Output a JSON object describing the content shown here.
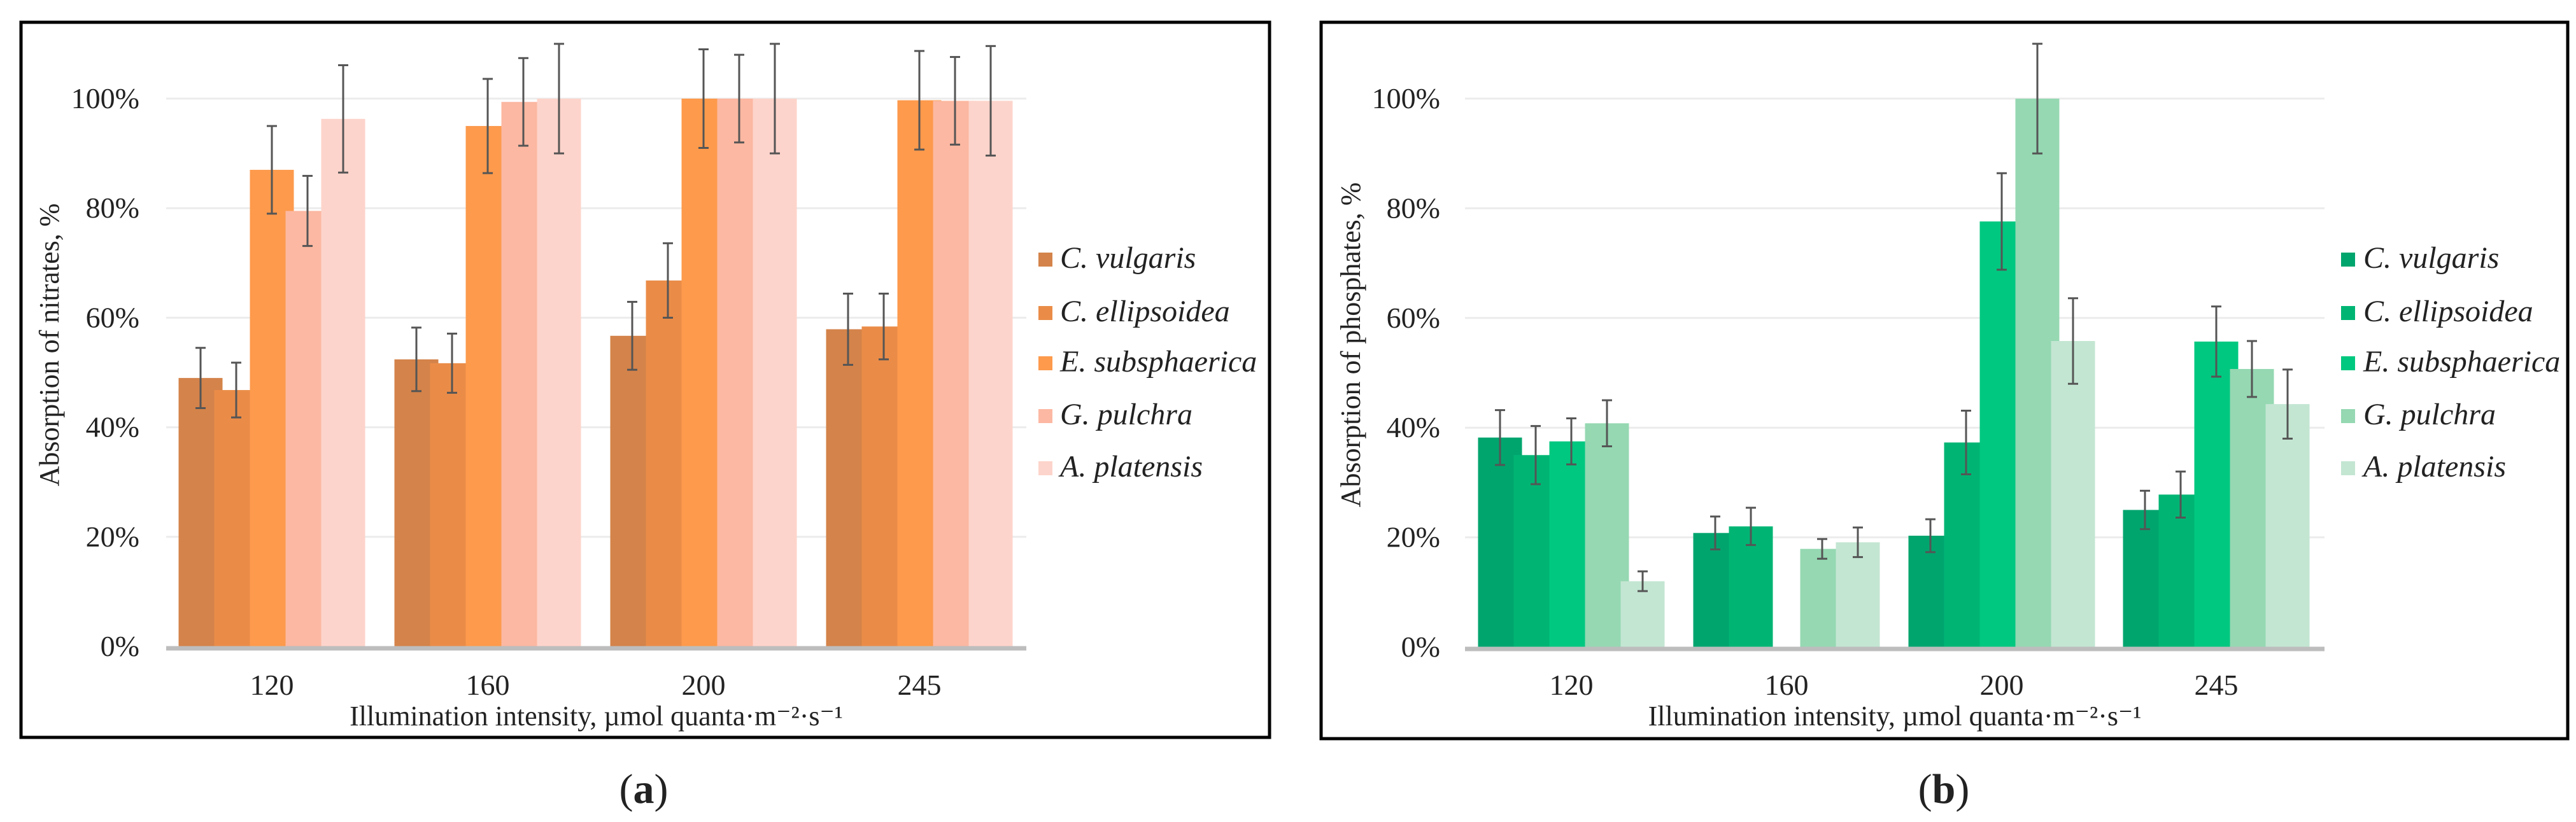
{
  "chart_data": [
    {
      "type": "bar",
      "caption_open": "(",
      "caption_letter": "a",
      "caption_close": ")",
      "xlabel": "Illumination intensity, µmol quanta·m⁻²·s⁻¹",
      "ylabel": "Absorption of nitrates, %",
      "categories": [
        "120",
        "160",
        "200",
        "245"
      ],
      "yticks": [
        "0%",
        "20%",
        "40%",
        "60%",
        "80%",
        "100%"
      ],
      "ylim": [
        0,
        110
      ],
      "grid": true,
      "legend_position": "right",
      "series": [
        {
          "name": "C. vulgaris",
          "color": "#d4834a",
          "values": [
            49.0,
            52.4,
            56.7,
            57.9
          ],
          "errors": [
            5.5,
            5.8,
            6.2,
            6.5
          ]
        },
        {
          "name": "C. ellipsoidea",
          "color": "#ea8c48",
          "values": [
            46.8,
            51.7,
            66.8,
            58.4
          ],
          "errors": [
            5.0,
            5.4,
            6.8,
            6.0
          ]
        },
        {
          "name": "E. subsphaerica",
          "color": "#fd9a4c",
          "values": [
            87.0,
            95.0,
            100.0,
            99.7
          ],
          "errors": [
            8.0,
            8.6,
            9.0,
            9.0
          ]
        },
        {
          "name": "G. pulchra",
          "color": "#fcb8a2",
          "values": [
            79.5,
            99.4,
            100.0,
            99.6
          ],
          "errors": [
            6.4,
            8.0,
            8.0,
            8.0
          ]
        },
        {
          "name": "A. platensis",
          "color": "#fdd4cb",
          "values": [
            96.3,
            100.0,
            100.0,
            99.6
          ],
          "errors": [
            9.8,
            10.0,
            10.0,
            10.0
          ]
        }
      ]
    },
    {
      "type": "bar",
      "caption_open": "(",
      "caption_letter": "b",
      "caption_close": ")",
      "xlabel": "Illumination intensity, µmol quanta·m⁻²·s⁻¹",
      "ylabel": "Absorption of phosphates, %",
      "categories": [
        "120",
        "160",
        "200",
        "245"
      ],
      "yticks": [
        "0%",
        "20%",
        "40%",
        "60%",
        "80%",
        "100%"
      ],
      "ylim": [
        0,
        110
      ],
      "grid": true,
      "legend_position": "right",
      "series": [
        {
          "name": "C. vulgaris",
          "color": "#00a56e",
          "values": [
            38.2,
            20.8,
            20.3,
            25.0
          ],
          "errors": [
            5.0,
            3.0,
            3.0,
            3.5
          ]
        },
        {
          "name": "C. ellipsoidea",
          "color": "#00b574",
          "values": [
            35.0,
            22.0,
            37.3,
            27.8
          ],
          "errors": [
            5.3,
            3.4,
            5.8,
            4.2
          ]
        },
        {
          "name": "E. subsphaerica",
          "color": "#00c880",
          "values": [
            37.5,
            0,
            77.6,
            55.7
          ],
          "errors": [
            4.2,
            0,
            8.8,
            6.4
          ]
        },
        {
          "name": "G. pulchra",
          "color": "#95d8b2",
          "values": [
            40.8,
            17.9,
            100.0,
            50.7
          ],
          "errors": [
            4.2,
            1.8,
            10.0,
            5.1
          ]
        },
        {
          "name": "A. platensis",
          "color": "#c3e6d2",
          "values": [
            12.0,
            19.1,
            55.8,
            44.3
          ],
          "errors": [
            1.8,
            2.7,
            7.8,
            6.3
          ]
        }
      ]
    }
  ]
}
